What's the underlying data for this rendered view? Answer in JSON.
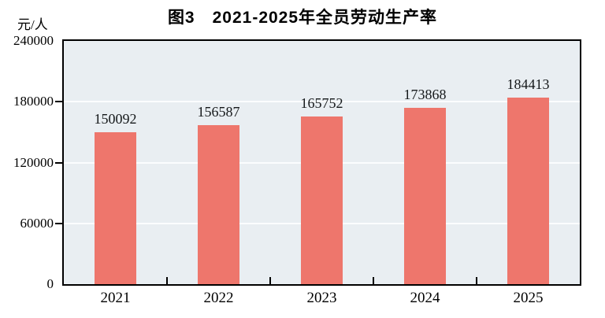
{
  "chart": {
    "title": "图3　2021-2025年全员劳动生产率",
    "y_unit": "元/人"
  },
  "chart_data": {
    "type": "bar",
    "title": "图3　2021-2025年全员劳动生产率",
    "y_unit_label": "元/人",
    "categories": [
      "2021",
      "2022",
      "2023",
      "2024",
      "2025"
    ],
    "values": [
      150092,
      156587,
      165752,
      173868,
      184413
    ],
    "xlabel": "",
    "ylabel": "元/人",
    "ylim": [
      0,
      240000
    ],
    "yticks": [
      0,
      60000,
      120000,
      180000,
      240000
    ],
    "grid": true,
    "legend_position": "none",
    "bar_color": "#ee766c",
    "plot_background": "#e9eef2",
    "gridline_color": "#fbfdfe"
  }
}
